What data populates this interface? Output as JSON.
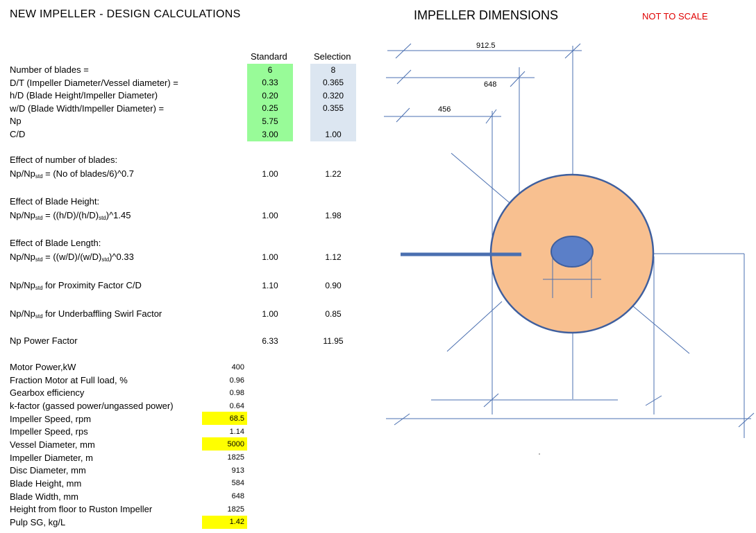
{
  "header": {
    "title": "NEW IMPELLER   -   DESIGN CALCULATIONS",
    "diagram_title": "IMPELLER DIMENSIONS",
    "not_to_scale": "NOT TO SCALE"
  },
  "columns": {
    "standard": "Standard",
    "selection": "Selection"
  },
  "params": [
    {
      "label": "Number of blades =",
      "standard": "6",
      "selection": "8"
    },
    {
      "label": "D/T (Impeller Diameter/Vessel diameter) =",
      "standard": "0.33",
      "selection": "0.365"
    },
    {
      "label": "h/D  (Blade Height/Impeller Diameter)",
      "standard": "0.20",
      "selection": "0.320"
    },
    {
      "label": "w/D (Blade Width/Impeller Diameter) =",
      "standard": "0.25",
      "selection": "0.355"
    },
    {
      "label": "Np",
      "standard": "5.75",
      "selection": ""
    },
    {
      "label": "C/D",
      "standard": "3.00",
      "selection": "1.00"
    }
  ],
  "effects": {
    "blades": {
      "heading": "Effect of number of blades:",
      "formula_a": "Np/Np",
      "sub": "std",
      "formula_b": " = (No of blades/6)^0.7",
      "standard": "1.00",
      "selection": "1.22"
    },
    "height": {
      "heading": "Effect of Blade Height:",
      "formula_a": "Np/Np",
      "sub": "std",
      "formula_b": " = ((h/D)/(h/D)",
      "sub2": "std",
      "formula_c": ")^1.45",
      "standard": "1.00",
      "selection": "1.98"
    },
    "length": {
      "heading": "Effect of Blade Length:",
      "formula_a": "Np/Np",
      "sub": "std",
      "formula_b": " = ((w/D)/(w/D)",
      "sub2": "std",
      "formula_c": ")^0.33",
      "standard": "1.00",
      "selection": "1.12"
    },
    "proximity": {
      "formula_a": "Np/Np",
      "sub": "std",
      "formula_b": " for Proximity Factor C/D",
      "standard": "1.10",
      "selection": "0.90"
    },
    "swirl": {
      "formula_a": "Np/Np",
      "sub": "std",
      "formula_b": " for Underbaffling Swirl Factor",
      "standard": "1.00",
      "selection": "0.85"
    },
    "power": {
      "label": "Np Power Factor",
      "standard": "6.33",
      "selection": "11.95"
    }
  },
  "operating": [
    {
      "label": "Motor Power,kW",
      "value": "400"
    },
    {
      "label": "Fraction Motor at Full load, %",
      "value": "0.96"
    },
    {
      "label": "Gearbox efficiency",
      "value": "0.98"
    },
    {
      "label": "k-factor (gassed power/ungassed power)",
      "value": "0.64"
    },
    {
      "label": "Impeller Speed, rpm",
      "value": "68.5"
    },
    {
      "label": "Impeller Speed, rps",
      "value": "1.14"
    },
    {
      "label": "Vessel Diameter, mm",
      "value": "5000"
    },
    {
      "label": "Impeller Diameter, m",
      "value": "1825"
    },
    {
      "label": "Disc Diameter, mm",
      "value": "913"
    },
    {
      "label": "Blade Height, mm",
      "value": "584"
    },
    {
      "label": "Blade Width, mm",
      "value": "648"
    },
    {
      "label": "Height from floor to Ruston Impeller",
      "value": "1825"
    },
    {
      "label": "Pulp SG, kg/L",
      "value": "1.42"
    }
  ],
  "dimensions": {
    "d1": "912.5",
    "d2": "648",
    "d3": "456"
  },
  "colors": {
    "disc_fill": "#f8c090",
    "line": "#4a6fb0",
    "hub_fill": "#5b7fc8",
    "input_green": "#98fb98",
    "input_blue": "#dce6f1",
    "input_yellow": "#ffff00"
  }
}
